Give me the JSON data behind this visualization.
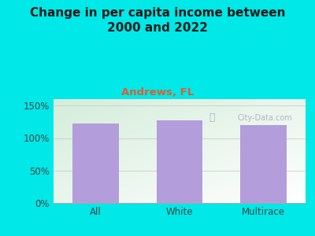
{
  "title": "Change in per capita income between\n2000 and 2022",
  "subtitle": "Andrews, FL",
  "categories": [
    "All",
    "White",
    "Multirace"
  ],
  "values": [
    122,
    127,
    120
  ],
  "bar_color": "#b39ddb",
  "title_fontsize": 11,
  "subtitle_fontsize": 9.5,
  "subtitle_color": "#e05c30",
  "title_color": "#1a1a1a",
  "bg_outer": "#00e8e8",
  "bg_inner_grad_topleft": "#d4edda",
  "bg_inner_grad_bottomright": "#ffffff",
  "ytick_label_color": "#444444",
  "xtick_label_color": "#444444",
  "watermark_text": "City-Data.com",
  "watermark_color": "#aaaabb",
  "bar_width": 0.55,
  "ylim": [
    0,
    160
  ],
  "yticks": [
    0,
    50,
    100,
    150
  ]
}
